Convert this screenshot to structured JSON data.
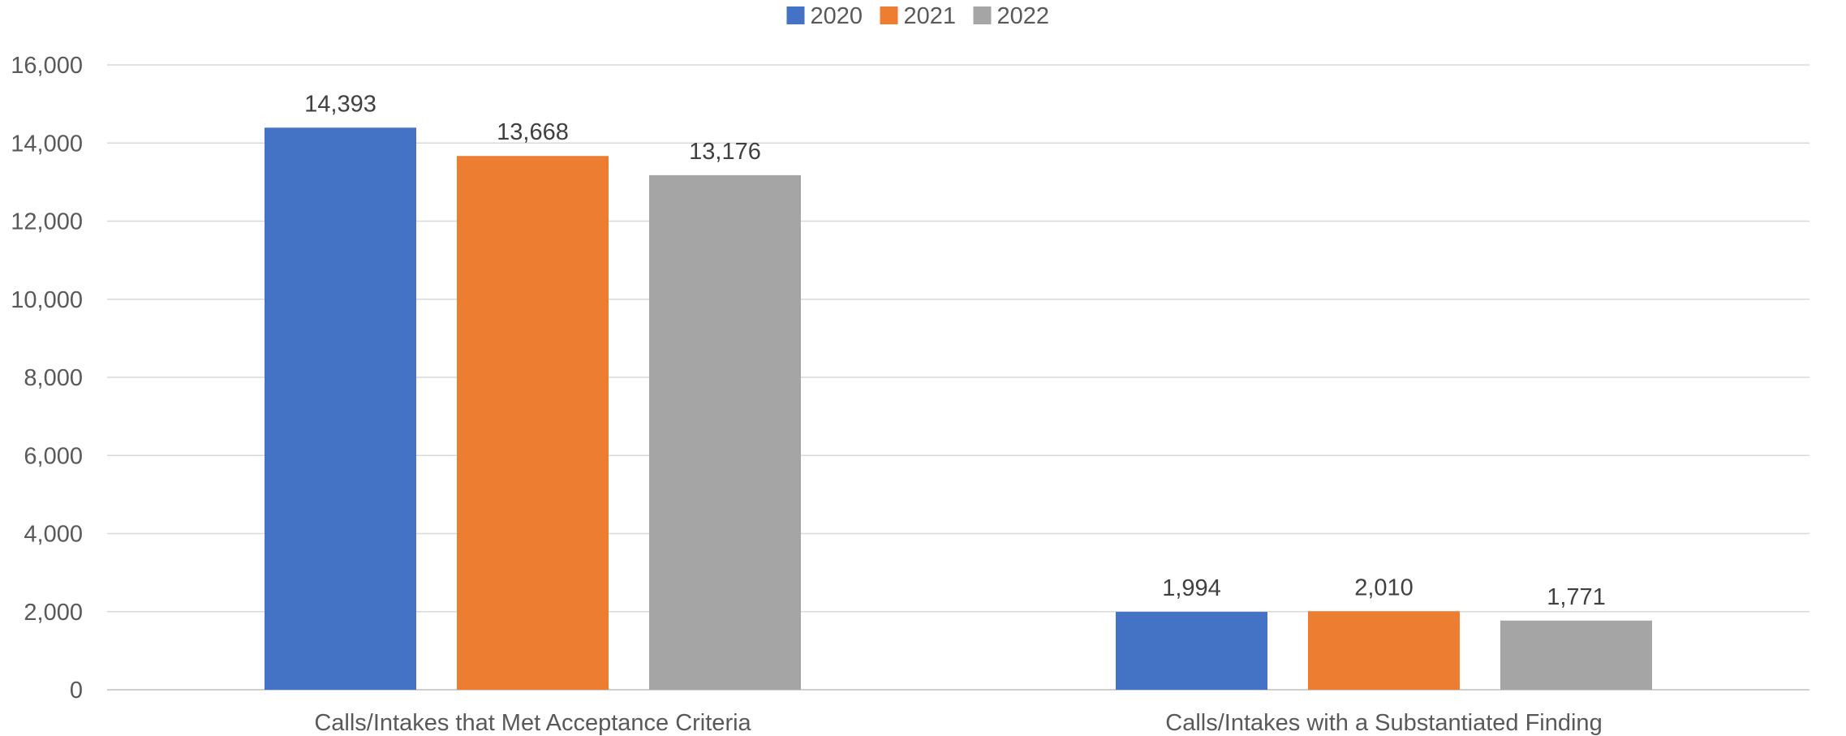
{
  "chart_data": {
    "type": "bar",
    "categories": [
      "Calls/Intakes that Met Acceptance Criteria",
      "Calls/Intakes with a Substantiated Finding"
    ],
    "series": [
      {
        "name": "2020",
        "values": [
          14393,
          1994
        ],
        "color": "#4472C4",
        "labels": [
          "14,393",
          "1,994"
        ]
      },
      {
        "name": "2021",
        "values": [
          13668,
          2010
        ],
        "color": "#ED7D31",
        "labels": [
          "13,668",
          "2,010"
        ]
      },
      {
        "name": "2022",
        "values": [
          13176,
          1771
        ],
        "color": "#A5A5A5",
        "labels": [
          "13,176",
          "1,771"
        ]
      }
    ],
    "ylim": [
      0,
      16000
    ],
    "yticks": [
      0,
      2000,
      4000,
      6000,
      8000,
      10000,
      12000,
      14000,
      16000
    ],
    "ytick_labels": [
      "0",
      "2,000",
      "4,000",
      "6,000",
      "8,000",
      "10,000",
      "12,000",
      "14,000",
      "16,000"
    ],
    "grid": true,
    "legend_position": "top-center",
    "title": "",
    "xlabel": "",
    "ylabel": ""
  }
}
